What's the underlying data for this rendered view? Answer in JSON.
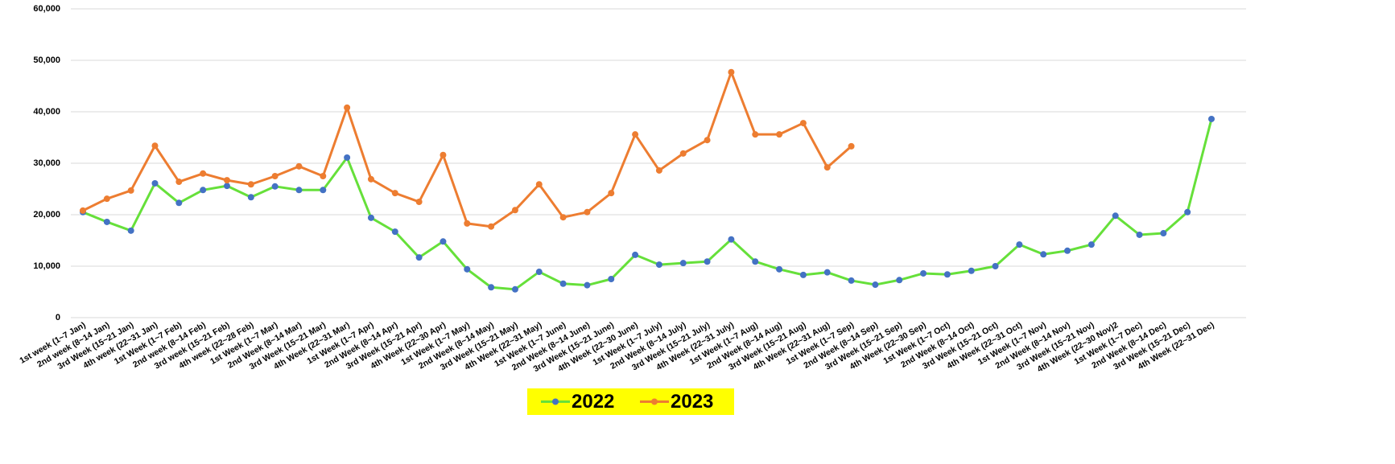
{
  "chart_data": {
    "type": "line",
    "categories": [
      "1st week (1~7 Jan)",
      "2nd week (8~14 Jan)",
      "3rd Week (15~21 Jan)",
      "4th week (22~31 Jan)",
      "1st Week (1~7 Feb)",
      "2nd week (8~14 Feb)",
      "3rd week (15~21 Feb)",
      "4th week (22~28 Feb)",
      "1st Week (1~7 Mar)",
      "2nd Week (8~14 Mar)",
      "3rd Week (15~21 Mar)",
      "4th Week (22~31 Mar)",
      "1st Week (1~7 Apr)",
      "2nd Week (8~14 Apr)",
      "3rd Week (15~21 Apr)",
      "4th Week (22~30 Apr)",
      "1st Week (1~7 May)",
      "2nd Week (8~14 May)",
      "3rd Week (15~21 May)",
      "4th Week (22~31 May)",
      "1st Week (1~7 June)",
      "2nd Week (8~14 June)",
      "3rd Week (15~21 June)",
      "4th Week (22~30 June)",
      "1st Week (1~7 July)",
      "2nd Week (8~14 July)",
      "3rd Week (15~21 July)",
      "4th Week (22~31 July)",
      "1st Week (1~7 Aug)",
      "2nd Week (8~14 Aug)",
      "3rd Week (15~21 Aug)",
      "4th Week (22~31 Aug)",
      "1st Week (1~7 Sep)",
      "2nd Week (8~14 Sep)",
      "3rd Week (15~21 Sep)",
      "4th Week (22~30 Sep)",
      "1st Week (1~7 Oct)",
      "2nd Week (8~14 Oct)",
      "3rd Week (15~21 Oct)",
      "4th Week (22~31 Oct)",
      "1st Week (1~7 Nov)",
      "2nd Week (8~14 Nov)",
      "3rd  Week (15~21 Nov)",
      "4th Week (22~30 Nov)2",
      "1st Week (1~7 Dec)",
      "2nd Week (8~14 Dec)",
      "3rd Week (15~21 Dec)",
      "4th Week (22~31 Dec)"
    ],
    "series": [
      {
        "name": "2022",
        "color": "#66e03a",
        "marker_color": "#4472c4",
        "values": [
          20500,
          18600,
          16900,
          26100,
          22300,
          24800,
          25600,
          23400,
          25500,
          24800,
          24800,
          31100,
          19400,
          16700,
          11700,
          14800,
          9400,
          5900,
          5500,
          8900,
          6600,
          6300,
          7500,
          12200,
          10300,
          10600,
          10900,
          15200,
          10900,
          9400,
          8300,
          8800,
          7200,
          6400,
          7300,
          8600,
          8400,
          9100,
          10000,
          14200,
          12300,
          13000,
          14200,
          19800,
          16100,
          16400,
          20500,
          38600
        ]
      },
      {
        "name": "2023",
        "color": "#ed7d31",
        "marker_color": "#ed7d31",
        "values": [
          20800,
          23100,
          24700,
          33400,
          26400,
          28000,
          26700,
          25900,
          27500,
          29400,
          27500,
          40800,
          26900,
          24200,
          22500,
          31600,
          18300,
          17700,
          20900,
          25900,
          19500,
          20500,
          24200,
          35600,
          28600,
          31900,
          34500,
          47700,
          35600,
          35600,
          37800,
          29200,
          33300,
          null,
          null,
          null,
          null,
          null,
          null,
          null,
          null,
          null,
          null,
          null,
          null,
          null,
          null,
          null
        ]
      }
    ],
    "ylim": [
      0,
      60000
    ],
    "yticks": [
      0,
      {
        "value": 10000,
        "label": "10,000"
      },
      {
        "value": 20000,
        "label": "20,000"
      },
      {
        "value": 30000,
        "label": "30,000"
      },
      {
        "value": 40000,
        "label": "40,000"
      },
      {
        "value": 50000,
        "label": "50,000"
      },
      {
        "value": 60000,
        "label": "60,000"
      }
    ],
    "grid": true,
    "legend": "bottom",
    "legend_background": "#ffff00"
  }
}
